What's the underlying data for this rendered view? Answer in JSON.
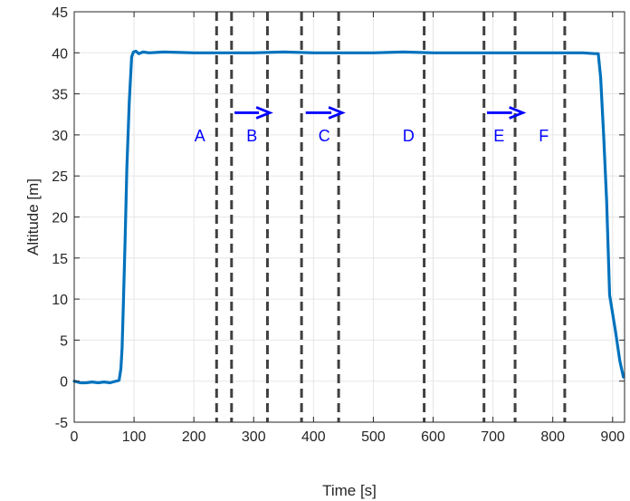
{
  "chart_data": {
    "type": "line",
    "title": "",
    "xlabel": "Time [s]",
    "ylabel": "Altitude [m]",
    "xlim": [
      0,
      920
    ],
    "ylim": [
      -5,
      45
    ],
    "xticks": [
      0,
      100,
      200,
      300,
      400,
      500,
      600,
      700,
      800,
      900
    ],
    "yticks": [
      -5,
      0,
      5,
      10,
      15,
      20,
      25,
      30,
      35,
      40,
      45
    ],
    "grid": true,
    "legend": "none",
    "series": [
      {
        "color": "#0072BD",
        "x": [
          0,
          10,
          20,
          30,
          40,
          50,
          60,
          70,
          75,
          78,
          80,
          82,
          85,
          88,
          92,
          96,
          99,
          103,
          108,
          115,
          125,
          150,
          200,
          250,
          300,
          350,
          400,
          450,
          500,
          550,
          600,
          650,
          700,
          750,
          800,
          850,
          870,
          876,
          880,
          885,
          890,
          895,
          905,
          912,
          918
        ],
        "y": [
          0,
          -0.2,
          -0.2,
          -0.1,
          -0.2,
          -0.1,
          -0.2,
          0,
          0.1,
          1.5,
          4,
          9,
          17,
          26,
          34,
          39.5,
          40.1,
          40.2,
          39.9,
          40.1,
          40,
          40.1,
          40,
          40,
          40,
          40.1,
          40,
          40,
          40,
          40.1,
          40,
          40,
          40,
          40,
          40,
          40,
          39.9,
          39.9,
          37,
          30,
          22,
          10.5,
          6,
          2.5,
          0.5
        ]
      }
    ],
    "vlines": {
      "x": [
        238,
        263,
        323,
        380,
        442,
        585,
        685,
        737,
        820
      ],
      "color": "#404040",
      "style": "dashed"
    },
    "annotations": [
      {
        "text": "A",
        "x": 210,
        "y": 29.2
      },
      {
        "text": "B",
        "x": 297,
        "y": 29.2
      },
      {
        "text": "C",
        "x": 418,
        "y": 29.2
      },
      {
        "text": "D",
        "x": 559,
        "y": 29.2
      },
      {
        "text": "E",
        "x": 710,
        "y": 29.2
      },
      {
        "text": "F",
        "x": 785,
        "y": 29.2
      }
    ],
    "arrows": [
      {
        "x_start": 268,
        "x_end": 327,
        "y": 32.7
      },
      {
        "x_start": 387,
        "x_end": 448,
        "y": 32.7
      },
      {
        "x_start": 690,
        "x_end": 750,
        "y": 32.7
      }
    ],
    "annotation_color": "#0000FF"
  }
}
